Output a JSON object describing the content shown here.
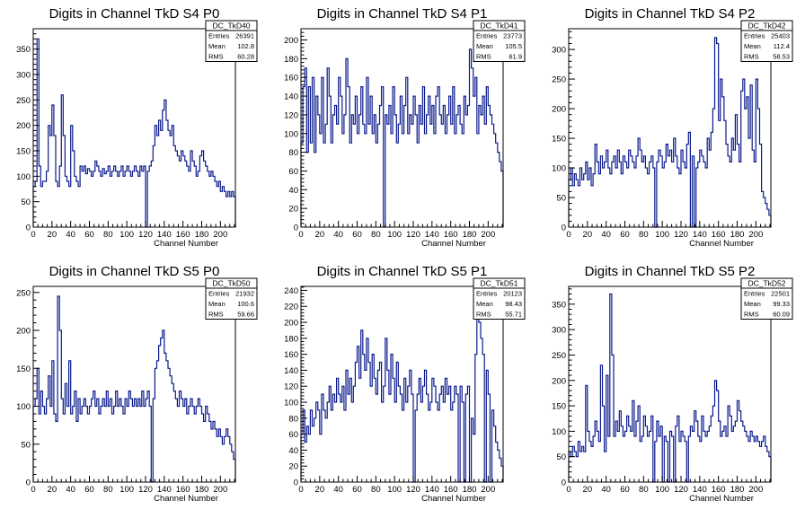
{
  "page": {
    "background": "#ffffff",
    "line_color": "#0a1a8c"
  },
  "chart_data": [
    {
      "type": "histogram",
      "title": "Digits in Channel TkD S4 P0",
      "xlabel": "Channel Number",
      "ylabel": "",
      "xlim": [
        0,
        216
      ],
      "ylim": [
        0,
        390
      ],
      "xticks": [
        0,
        20,
        40,
        60,
        80,
        100,
        120,
        140,
        160,
        180,
        200
      ],
      "yticks": [
        0,
        50,
        100,
        150,
        200,
        250,
        300,
        350
      ],
      "stats": {
        "name": "DC_TkD40",
        "rows": [
          [
            "Entries",
            "26391"
          ],
          [
            "Mean",
            "102.8"
          ],
          [
            "RMS",
            "60.28"
          ]
        ]
      },
      "bin_width": 2,
      "values": [
        80,
        90,
        370,
        120,
        80,
        90,
        90,
        110,
        200,
        180,
        240,
        180,
        90,
        80,
        120,
        260,
        180,
        100,
        90,
        80,
        200,
        150,
        100,
        90,
        80,
        120,
        110,
        120,
        105,
        115,
        110,
        100,
        110,
        130,
        120,
        110,
        100,
        115,
        105,
        110,
        120,
        100,
        110,
        120,
        110,
        100,
        110,
        120,
        100,
        110,
        120,
        110,
        100,
        110,
        120,
        110,
        100,
        120,
        110,
        120,
        0,
        110,
        120,
        130,
        160,
        200,
        180,
        210,
        190,
        230,
        250,
        210,
        190,
        180,
        200,
        160,
        150,
        140,
        130,
        150,
        140,
        130,
        120,
        110,
        150,
        130,
        120,
        100,
        110,
        140,
        150,
        130,
        120,
        110,
        100,
        110,
        100,
        90,
        80,
        90,
        70,
        80,
        70,
        60,
        70,
        60,
        70,
        60
      ]
    },
    {
      "type": "histogram",
      "title": "Digits in Channel TkD S4 P1",
      "xlabel": "Channel Number",
      "ylabel": "",
      "xlim": [
        0,
        216
      ],
      "ylim": [
        0,
        212
      ],
      "xticks": [
        0,
        20,
        40,
        60,
        80,
        100,
        120,
        140,
        160,
        180,
        200
      ],
      "yticks": [
        0,
        20,
        40,
        60,
        80,
        100,
        120,
        140,
        160,
        180,
        200
      ],
      "stats": {
        "name": "DC_TkD41",
        "rows": [
          [
            "Entries",
            "23773"
          ],
          [
            "Mean",
            "105.5"
          ],
          [
            "RMS",
            "61.9"
          ]
        ]
      },
      "bin_width": 2,
      "values": [
        90,
        150,
        170,
        80,
        150,
        90,
        160,
        80,
        140,
        120,
        100,
        160,
        90,
        110,
        170,
        140,
        90,
        120,
        130,
        110,
        160,
        140,
        100,
        120,
        180,
        150,
        90,
        120,
        110,
        140,
        100,
        120,
        150,
        110,
        100,
        160,
        110,
        140,
        100,
        120,
        90,
        110,
        130,
        150,
        0,
        120,
        110,
        130,
        100,
        150,
        120,
        90,
        110,
        140,
        100,
        130,
        160,
        100,
        120,
        110,
        140,
        120,
        90,
        130,
        110,
        150,
        100,
        120,
        140,
        110,
        130,
        100,
        140,
        150,
        120,
        110,
        130,
        100,
        120,
        140,
        110,
        150,
        100,
        120,
        130,
        110,
        100,
        140,
        120,
        130,
        190,
        170,
        140,
        160,
        100,
        130,
        120,
        140,
        110,
        150,
        130,
        120,
        110,
        100,
        90,
        80,
        70,
        60
      ]
    },
    {
      "type": "histogram",
      "title": "Digits in Channel TkD S4 P2",
      "xlabel": "Channel Number",
      "ylabel": "",
      "xlim": [
        0,
        216
      ],
      "ylim": [
        0,
        335
      ],
      "xticks": [
        0,
        20,
        40,
        60,
        80,
        100,
        120,
        140,
        160,
        180,
        200
      ],
      "yticks": [
        0,
        50,
        100,
        150,
        200,
        250,
        300
      ],
      "stats": {
        "name": "DC_TkD42",
        "rows": [
          [
            "Entries",
            "25403"
          ],
          [
            "Mean",
            "112.4"
          ],
          [
            "RMS",
            "58.53"
          ]
        ]
      },
      "bin_width": 2,
      "values": [
        80,
        100,
        70,
        90,
        80,
        70,
        100,
        80,
        90,
        110,
        80,
        100,
        70,
        90,
        140,
        110,
        90,
        120,
        100,
        110,
        130,
        100,
        90,
        110,
        120,
        100,
        130,
        110,
        90,
        120,
        110,
        100,
        130,
        120,
        110,
        100,
        120,
        150,
        130,
        110,
        120,
        100,
        90,
        110,
        120,
        100,
        0,
        110,
        130,
        120,
        100,
        110,
        140,
        120,
        130,
        110,
        150,
        120,
        100,
        90,
        130,
        110,
        100,
        140,
        160,
        0,
        120,
        0,
        100,
        110,
        130,
        120,
        110,
        100,
        150,
        130,
        160,
        200,
        320,
        310,
        180,
        250,
        220,
        180,
        140,
        120,
        110,
        150,
        130,
        190,
        140,
        110,
        230,
        250,
        200,
        220,
        150,
        240,
        130,
        110,
        250,
        200,
        140,
        60,
        50,
        40,
        30,
        20
      ]
    },
    {
      "type": "histogram",
      "title": "Digits in Channel TkD S5 P0",
      "xlabel": "Channel Number",
      "ylabel": "",
      "xlim": [
        0,
        216
      ],
      "ylim": [
        0,
        258
      ],
      "xticks": [
        0,
        20,
        40,
        60,
        80,
        100,
        120,
        140,
        160,
        180,
        200
      ],
      "yticks": [
        0,
        50,
        100,
        150,
        200,
        250
      ],
      "stats": {
        "name": "DC_TkD50",
        "rows": [
          [
            "Entries",
            "21932"
          ],
          [
            "Mean",
            "100.6"
          ],
          [
            "RMS",
            "59.66"
          ]
        ]
      },
      "bin_width": 2,
      "values": [
        100,
        110,
        150,
        90,
        120,
        100,
        90,
        110,
        140,
        100,
        160,
        90,
        80,
        245,
        200,
        110,
        90,
        130,
        100,
        160,
        90,
        100,
        120,
        80,
        110,
        90,
        100,
        110,
        100,
        90,
        100,
        110,
        120,
        100,
        110,
        90,
        100,
        110,
        100,
        120,
        100,
        110,
        90,
        100,
        120,
        100,
        110,
        100,
        90,
        110,
        100,
        120,
        110,
        100,
        110,
        100,
        110,
        100,
        120,
        100,
        110,
        120,
        100,
        0,
        110,
        150,
        160,
        180,
        190,
        200,
        170,
        160,
        150,
        140,
        130,
        120,
        110,
        100,
        120,
        110,
        100,
        110,
        90,
        100,
        110,
        100,
        90,
        100,
        110,
        100,
        90,
        80,
        100,
        90,
        80,
        70,
        80,
        70,
        60,
        70,
        60,
        50,
        60,
        70,
        60,
        50,
        40,
        30
      ]
    },
    {
      "type": "histogram",
      "title": "Digits in Channel TkD S5 P1",
      "xlabel": "Channel Number",
      "ylabel": "",
      "xlim": [
        0,
        216
      ],
      "ylim": [
        0,
        245
      ],
      "xticks": [
        0,
        20,
        40,
        60,
        80,
        100,
        120,
        140,
        160,
        180,
        200
      ],
      "yticks": [
        0,
        20,
        40,
        60,
        80,
        100,
        120,
        140,
        160,
        180,
        200,
        220,
        240
      ],
      "stats": {
        "name": "DC_TkD51",
        "rows": [
          [
            "Entries",
            "20123"
          ],
          [
            "Mean",
            "98.43"
          ],
          [
            "RMS",
            "55.71"
          ]
        ]
      },
      "bin_width": 2,
      "values": [
        60,
        90,
        50,
        70,
        60,
        90,
        70,
        80,
        100,
        90,
        60,
        110,
        90,
        80,
        100,
        120,
        90,
        110,
        100,
        130,
        110,
        100,
        120,
        90,
        140,
        110,
        130,
        100,
        120,
        150,
        170,
        130,
        190,
        160,
        140,
        180,
        150,
        120,
        160,
        130,
        110,
        140,
        150,
        100,
        120,
        180,
        140,
        110,
        160,
        130,
        100,
        150,
        120,
        110,
        90,
        130,
        100,
        120,
        140,
        110,
        0,
        90,
        110,
        130,
        100,
        120,
        140,
        110,
        90,
        100,
        130,
        120,
        100,
        90,
        110,
        120,
        100,
        130,
        110,
        120,
        90,
        100,
        120,
        110,
        0,
        120,
        100,
        0,
        110,
        120,
        0,
        80,
        60,
        160,
        220,
        200,
        180,
        160,
        0,
        140,
        110,
        0,
        90,
        70,
        50,
        40,
        30,
        20
      ]
    },
    {
      "type": "histogram",
      "title": "Digits in Channel TkD S5 P2",
      "xlabel": "Channel Number",
      "ylabel": "",
      "xlim": [
        0,
        216
      ],
      "ylim": [
        0,
        385
      ],
      "xticks": [
        0,
        20,
        40,
        60,
        80,
        100,
        120,
        140,
        160,
        180,
        200
      ],
      "yticks": [
        0,
        50,
        100,
        150,
        200,
        250,
        300,
        350
      ],
      "stats": {
        "name": "DC_TkD52",
        "rows": [
          [
            "Entries",
            "22501"
          ],
          [
            "Mean",
            "99.33"
          ],
          [
            "RMS",
            "60.09"
          ]
        ]
      },
      "bin_width": 2,
      "values": [
        60,
        50,
        70,
        60,
        50,
        80,
        60,
        70,
        60,
        190,
        100,
        80,
        70,
        90,
        120,
        100,
        80,
        230,
        150,
        60,
        210,
        90,
        370,
        250,
        90,
        120,
        100,
        140,
        110,
        90,
        100,
        130,
        110,
        100,
        160,
        90,
        120,
        150,
        80,
        90,
        130,
        110,
        90,
        100,
        130,
        0,
        80,
        120,
        90,
        110,
        0,
        90,
        80,
        0,
        100,
        90,
        0,
        110,
        130,
        80,
        100,
        90,
        80,
        0,
        90,
        110,
        100,
        140,
        120,
        90,
        80,
        130,
        100,
        90,
        100,
        110,
        130,
        150,
        200,
        180,
        120,
        90,
        100,
        110,
        90,
        150,
        130,
        100,
        110,
        120,
        160,
        140,
        120,
        110,
        100,
        90,
        80,
        100,
        90,
        80,
        90,
        80,
        70,
        80,
        90,
        70,
        60,
        50
      ]
    }
  ]
}
